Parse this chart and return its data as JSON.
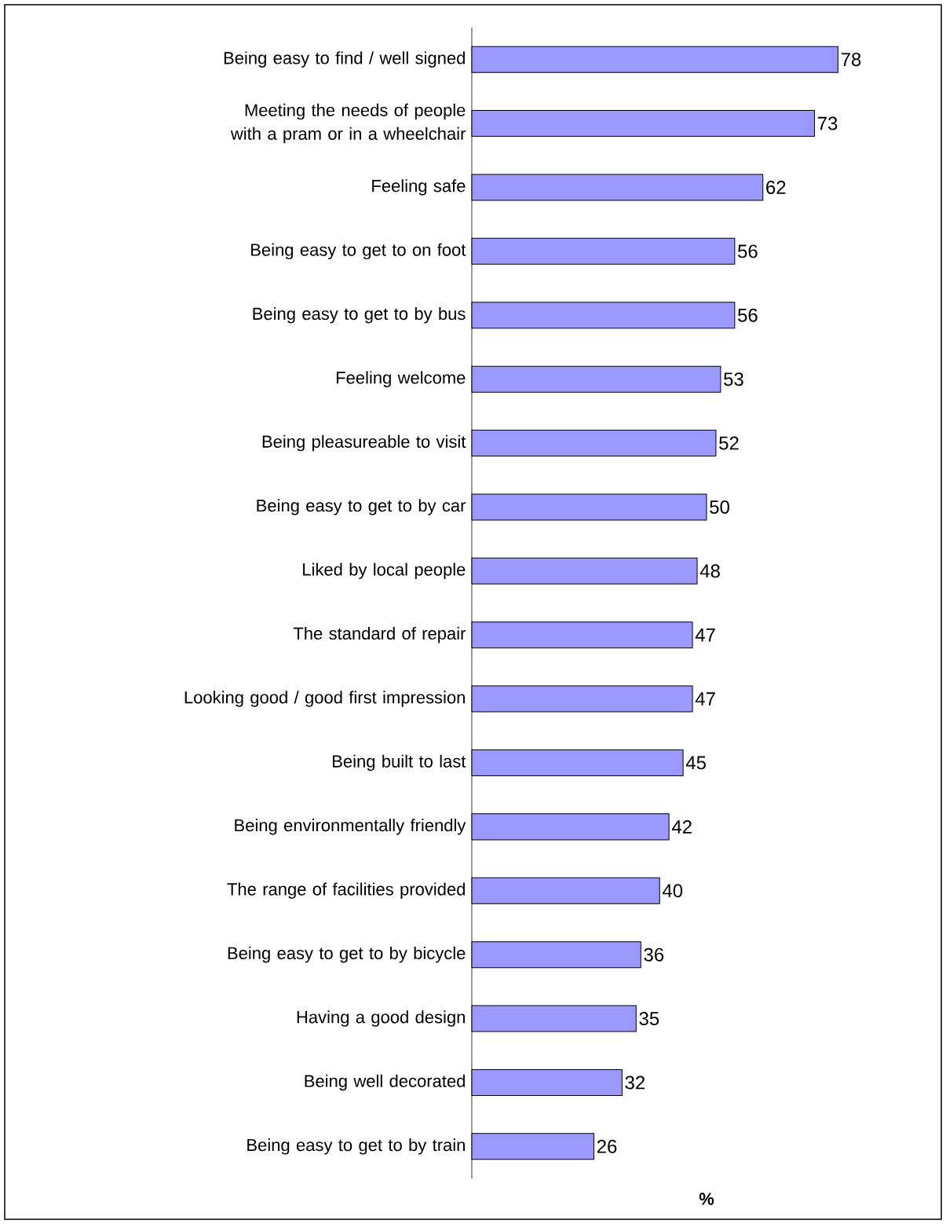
{
  "chart_data": {
    "type": "bar",
    "orientation": "horizontal",
    "xlabel": "%",
    "categories": [
      "Being easy to find / well signed",
      "Meeting the needs of people with a pram or in a wheelchair",
      "Feeling safe",
      "Being easy to get to on foot",
      "Being easy to get to by bus",
      "Feeling welcome",
      "Being pleasureable to visit",
      "Being easy to get to by car",
      "Liked by local people",
      "The standard of repair",
      "Looking good / good first impression",
      "Being built to last",
      "Being environmentally friendly",
      "The range of facilities provided",
      "Being easy to get to by bicycle",
      "Having a good design",
      "Being well decorated",
      "Being easy to get to by train"
    ],
    "values": [
      78,
      73,
      62,
      56,
      56,
      53,
      52,
      50,
      48,
      47,
      47,
      45,
      42,
      40,
      36,
      35,
      32,
      26
    ],
    "color": "#9999ff",
    "data_labels": true
  }
}
